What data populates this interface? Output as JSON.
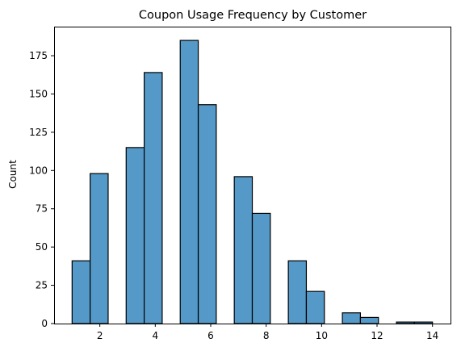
{
  "chart_data": {
    "type": "bar",
    "title": "Coupon Usage Frequency by Customer",
    "xlabel": "",
    "ylabel": "Count",
    "xlim": [
      0.35,
      14.65
    ],
    "ylim": [
      0,
      194
    ],
    "x_ticks": [
      2,
      4,
      6,
      8,
      10,
      12,
      14
    ],
    "y_ticks": [
      0,
      25,
      50,
      75,
      100,
      125,
      150,
      175
    ],
    "bar_color": "#5499c7",
    "edge_color": "#000000",
    "grid": false,
    "legend": "none",
    "bins": [
      {
        "x0": 1.0,
        "x1": 1.65,
        "value": 41
      },
      {
        "x0": 1.65,
        "x1": 2.3,
        "value": 98
      },
      {
        "x0": 2.3,
        "x1": 2.95,
        "value": 0
      },
      {
        "x0": 2.95,
        "x1": 3.6,
        "value": 115
      },
      {
        "x0": 3.6,
        "x1": 4.25,
        "value": 164
      },
      {
        "x0": 4.25,
        "x1": 4.9,
        "value": 0
      },
      {
        "x0": 4.9,
        "x1": 5.55,
        "value": 185
      },
      {
        "x0": 5.55,
        "x1": 6.2,
        "value": 143
      },
      {
        "x0": 6.2,
        "x1": 6.85,
        "value": 0
      },
      {
        "x0": 6.85,
        "x1": 7.5,
        "value": 96
      },
      {
        "x0": 7.5,
        "x1": 8.15,
        "value": 72
      },
      {
        "x0": 8.15,
        "x1": 8.8,
        "value": 0
      },
      {
        "x0": 8.8,
        "x1": 9.45,
        "value": 41
      },
      {
        "x0": 9.45,
        "x1": 10.1,
        "value": 21
      },
      {
        "x0": 10.1,
        "x1": 10.75,
        "value": 0
      },
      {
        "x0": 10.75,
        "x1": 11.4,
        "value": 7
      },
      {
        "x0": 11.4,
        "x1": 12.05,
        "value": 4
      },
      {
        "x0": 12.05,
        "x1": 12.7,
        "value": 0
      },
      {
        "x0": 12.7,
        "x1": 13.35,
        "value": 1
      },
      {
        "x0": 13.35,
        "x1": 14.0,
        "value": 1
      }
    ]
  }
}
